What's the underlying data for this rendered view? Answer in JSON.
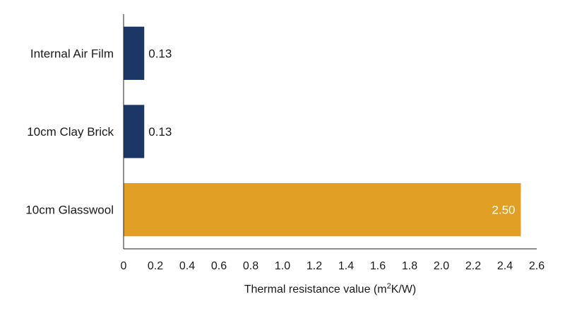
{
  "chart_data": {
    "type": "bar",
    "orientation": "horizontal",
    "categories": [
      "Internal Air Film",
      "10cm Clay Brick",
      "10cm Glasswool"
    ],
    "values": [
      0.13,
      0.13,
      2.5
    ],
    "value_labels": [
      "0.13",
      "0.13",
      "2.50"
    ],
    "bar_colors": [
      "#1c3766",
      "#1c3766",
      "#e29f26"
    ],
    "label_colors": [
      "#1a1a1a",
      "#1a1a1a",
      "#ffffff"
    ],
    "label_position": [
      "outside",
      "outside",
      "inside-end"
    ],
    "xlabel_main": "Thermal resistance value (m",
    "xlabel_sup": "2",
    "xlabel_end": "K/W)",
    "xlim": [
      0,
      2.6
    ],
    "xticks": [
      0,
      0.2,
      0.4,
      0.6,
      0.8,
      1.0,
      1.2,
      1.4,
      1.6,
      1.8,
      2.0,
      2.2,
      2.4,
      2.6
    ],
    "xtick_labels": [
      "0",
      "0.2",
      "0.4",
      "0.6",
      "0.8",
      "1.0",
      "1.2",
      "1.4",
      "1.6",
      "1.8",
      "2.0",
      "2.2",
      "2.4",
      "2.6"
    ],
    "grid": false,
    "legend": "none"
  }
}
